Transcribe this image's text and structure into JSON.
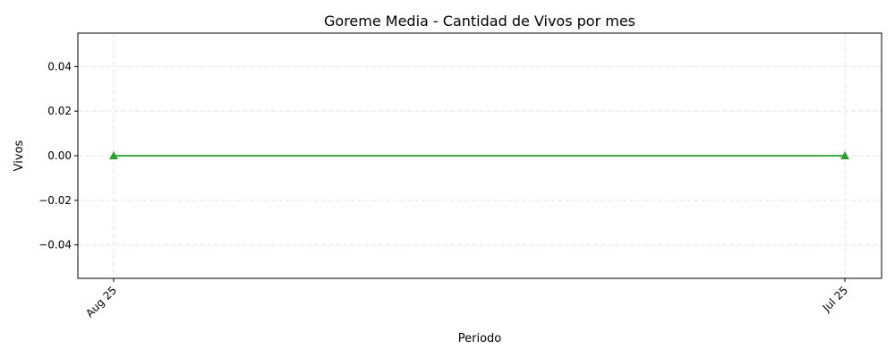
{
  "chart_data": {
    "type": "line",
    "title": "Goreme Media - Cantidad de Vivos por mes",
    "xlabel": "Periodo",
    "ylabel": "Vivos",
    "categories": [
      "Aug 25",
      "Jul 25"
    ],
    "series": [
      {
        "values": [
          0,
          0
        ],
        "color": "#2ca02c",
        "marker": "triangle-up"
      }
    ],
    "ylim": [
      -0.055,
      0.055
    ],
    "yticks": [
      -0.04,
      -0.02,
      0.0,
      0.02,
      0.04
    ],
    "ytick_labels": [
      "−0.04",
      "−0.02",
      "0.00",
      "0.02",
      "0.04"
    ],
    "grid": true,
    "x_tick_rotation": 45
  }
}
